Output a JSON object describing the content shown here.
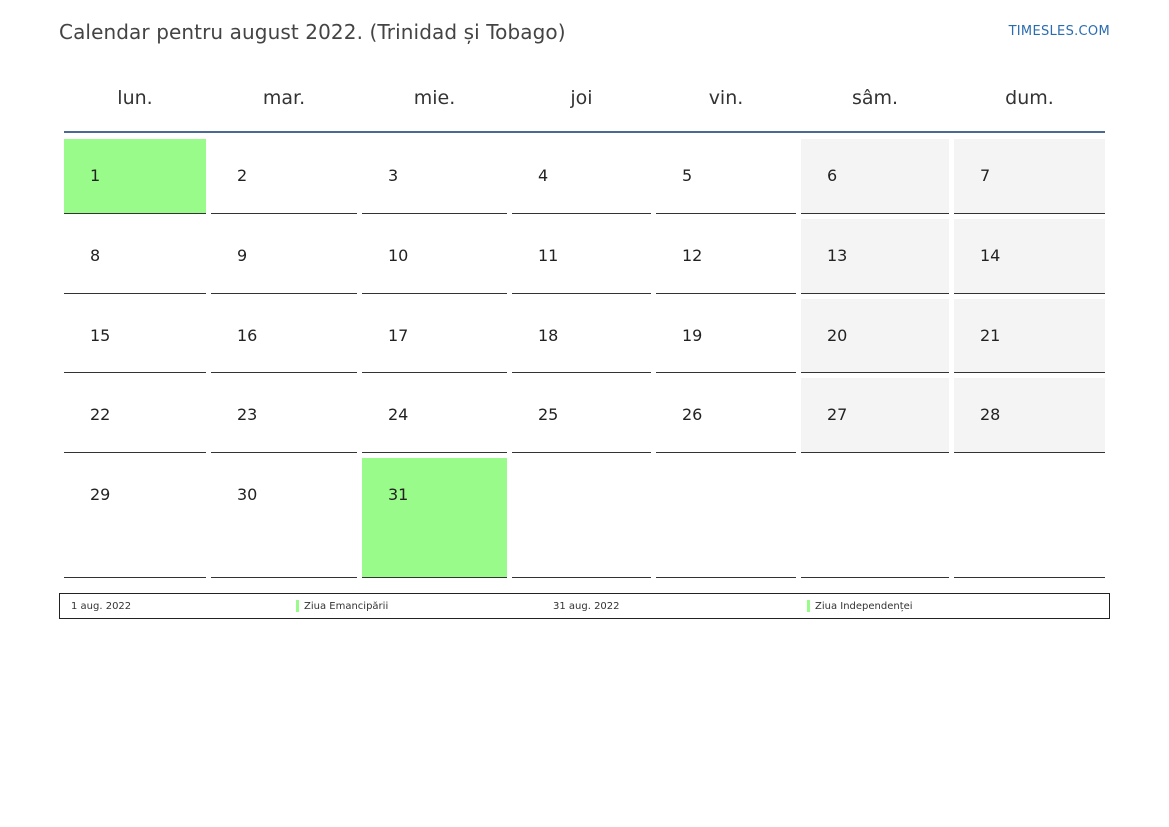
{
  "header": {
    "title": "Calendar pentru august 2022. (Trinidad și Tobago)",
    "site_link": "TIMESLES.COM"
  },
  "calendar": {
    "weekdays": [
      "lun.",
      "mar.",
      "mie.",
      "joi",
      "vin.",
      "sâm.",
      "dum."
    ],
    "weeks": [
      [
        "1",
        "2",
        "3",
        "4",
        "5",
        "6",
        "7"
      ],
      [
        "8",
        "9",
        "10",
        "11",
        "12",
        "13",
        "14"
      ],
      [
        "15",
        "16",
        "17",
        "18",
        "19",
        "20",
        "21"
      ],
      [
        "22",
        "23",
        "24",
        "25",
        "26",
        "27",
        "28"
      ],
      [
        "29",
        "30",
        "31",
        "",
        "",
        "",
        ""
      ]
    ],
    "holiday_days": [
      "1",
      "31"
    ],
    "holiday_color": "#99fb8a",
    "weekend_color": "#f4f4f4",
    "header_line_color": "#4a6a94"
  },
  "legend": {
    "entries": [
      {
        "date": "1 aug. 2022",
        "name": "Ziua Emancipării"
      },
      {
        "date": "31 aug. 2022",
        "name": "Ziua Independenței"
      }
    ]
  }
}
